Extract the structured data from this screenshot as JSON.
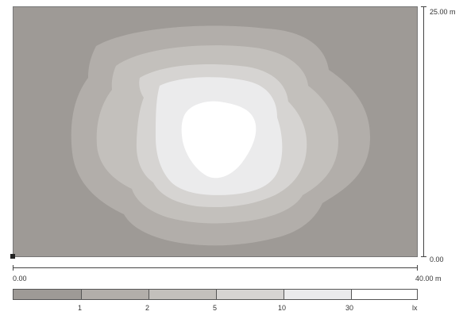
{
  "colors": {
    "band0": "#9e9a96",
    "band1": "#b2aeaa",
    "band2": "#c3c0bc",
    "band3": "#d6d4d2",
    "band4": "#ebebec",
    "band5": "#ffffff"
  },
  "axes": {
    "y_top_label": "25.00 m",
    "y_bottom_label": "0.00",
    "x_left_label": "0.00",
    "x_right_label": "40.00 m"
  },
  "legend": {
    "levels": [
      "1",
      "2",
      "5",
      "10",
      "30"
    ],
    "unit": "lx"
  },
  "chart_data": {
    "type": "heatmap",
    "x_range": [
      0,
      40
    ],
    "y_range": [
      0,
      25
    ],
    "contour_levels": [
      1,
      2,
      5,
      10,
      30
    ],
    "unit": "lx"
  }
}
